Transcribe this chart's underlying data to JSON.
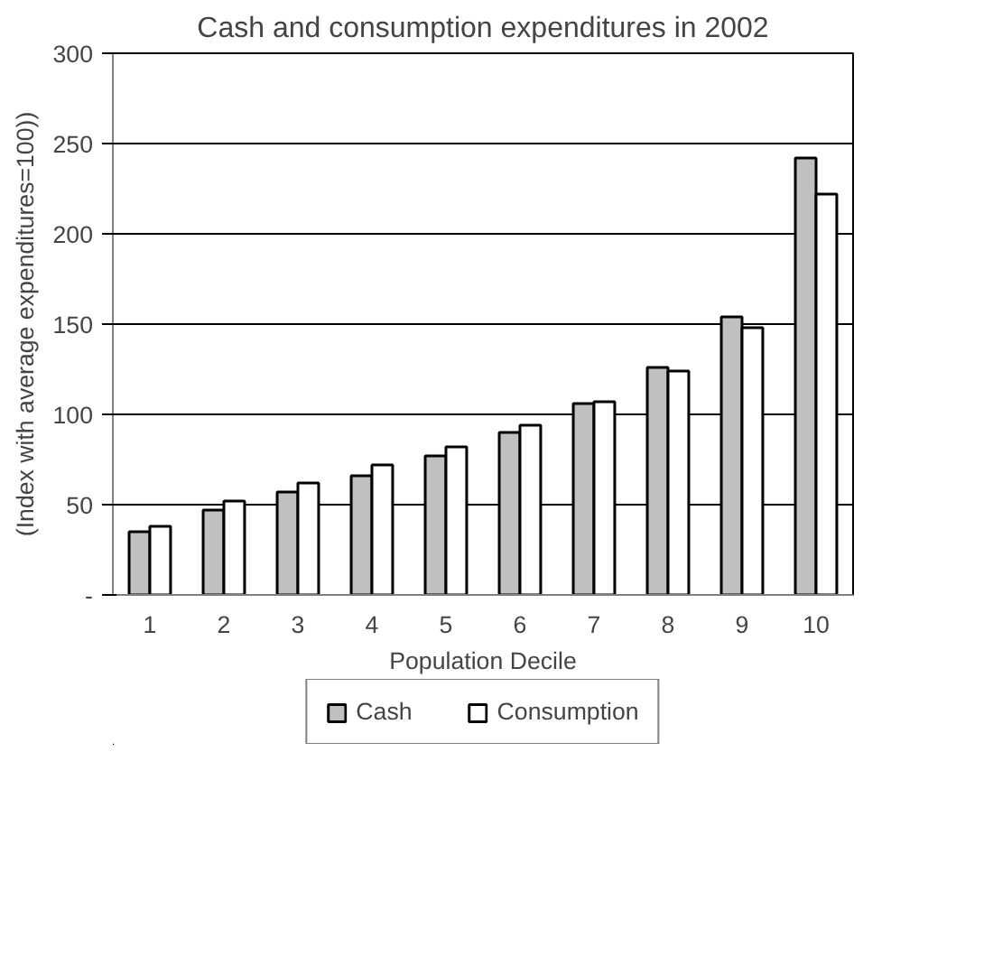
{
  "chart_data": {
    "type": "bar",
    "title": "Cash and consumption expenditures in 2002",
    "xlabel": "Population Decile",
    "ylabel": "(Index with average expenditures=100))",
    "categories": [
      "1",
      "2",
      "3",
      "4",
      "5",
      "6",
      "7",
      "8",
      "9",
      "10"
    ],
    "series": [
      {
        "name": "Cash",
        "color": "#c0c0c0",
        "values": [
          35,
          47,
          57,
          66,
          77,
          90,
          106,
          126,
          154,
          242
        ]
      },
      {
        "name": "Consumption",
        "color": "#ffffff",
        "values": [
          38,
          52,
          62,
          72,
          82,
          94,
          107,
          124,
          148,
          222
        ]
      }
    ],
    "ylim": [
      0,
      300
    ],
    "yticks": [
      {
        "value": 0,
        "label": "-"
      },
      50,
      100,
      150,
      200,
      250,
      300
    ],
    "grid": "y",
    "legend": "bottom"
  }
}
